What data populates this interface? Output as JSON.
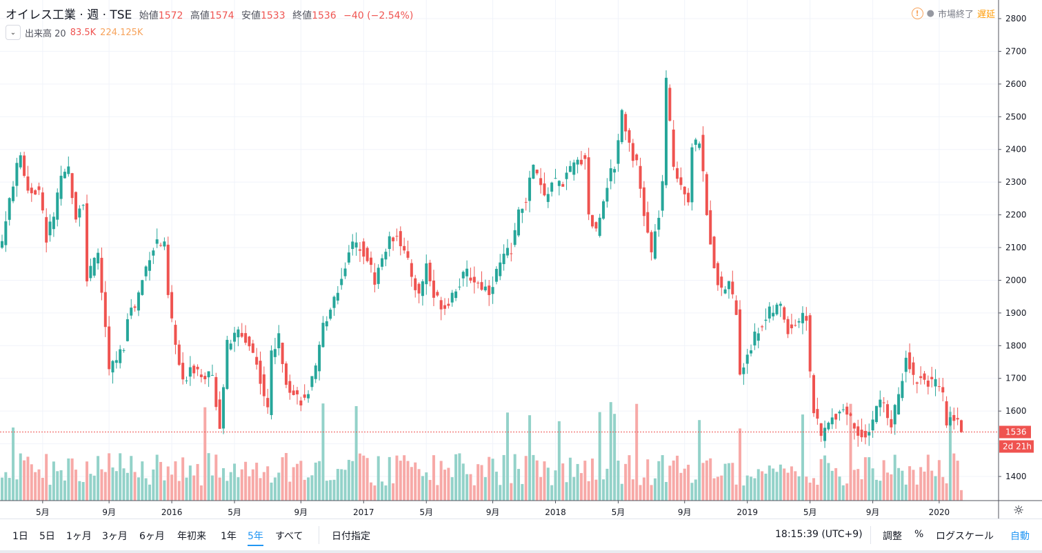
{
  "legend": {
    "symbol": "オイレス工業 · 週 · TSE",
    "open_label": "始値",
    "open": "1572",
    "high_label": "高値",
    "high": "1574",
    "low_label": "安値",
    "low": "1533",
    "close_label": "終値",
    "close": "1536",
    "change": "−40 (−2.54%)"
  },
  "volume_legend": {
    "label": "出来高 20",
    "value": "83.5K",
    "ma": "224.125K",
    "toggle_icon": "chevron-down-icon"
  },
  "status": {
    "text": "市場終了",
    "delay": "遅延"
  },
  "price_label": "1536",
  "countdown": "2d 21h",
  "toolbar": {
    "ranges": [
      "1日",
      "5日",
      "1ヶ月",
      "3ヶ月",
      "6ヶ月",
      "年初来",
      "1年",
      "5年",
      "すべて"
    ],
    "active": "5年",
    "date": "日付指定",
    "time": "18:15:39 (UTC+9)",
    "adjust": "調整",
    "percent": "%",
    "log": "ログスケール",
    "auto": "自動"
  },
  "colors": {
    "up": "#26a69a",
    "down": "#ef5350",
    "up_vol": "#93d2c9",
    "down_vol": "#f7a9a7"
  },
  "chart_data": {
    "type": "candlestick",
    "title": "オイレス工業 週足 TSE",
    "y_ticks": [
      2800,
      2700,
      2600,
      2500,
      2400,
      2300,
      2200,
      2100,
      2000,
      1900,
      1800,
      1700,
      1600,
      1500,
      1400
    ],
    "y_tick_labels": [
      "2800",
      "2700",
      "2600",
      "2500",
      "2400",
      "2300",
      "2200",
      "2100",
      "2000",
      "1900",
      "1800",
      "1700",
      "1600",
      "1400"
    ],
    "ylim": [
      1320,
      2830
    ],
    "x_ticks": [
      {
        "week": 11,
        "label": "5月"
      },
      {
        "week": 29,
        "label": "9月"
      },
      {
        "week": 46,
        "label": "2016"
      },
      {
        "week": 63,
        "label": "5月"
      },
      {
        "week": 81,
        "label": "9月"
      },
      {
        "week": 98,
        "label": "2017"
      },
      {
        "week": 115,
        "label": "5月"
      },
      {
        "week": 133,
        "label": "9月"
      },
      {
        "week": 150,
        "label": "2018"
      },
      {
        "week": 167,
        "label": "5月"
      },
      {
        "week": 185,
        "label": "9月"
      },
      {
        "week": 202,
        "label": "2019"
      },
      {
        "week": 219,
        "label": "5月"
      },
      {
        "week": 236,
        "label": "9月"
      },
      {
        "week": 254,
        "label": "2020"
      }
    ],
    "weeks": 261,
    "close_path": [
      [
        0,
        2120
      ],
      [
        3,
        2300
      ],
      [
        5,
        2380
      ],
      [
        7,
        2280
      ],
      [
        10,
        2270
      ],
      [
        12,
        2130
      ],
      [
        14,
        2200
      ],
      [
        16,
        2300
      ],
      [
        18,
        2340
      ],
      [
        20,
        2200
      ],
      [
        22,
        2250
      ],
      [
        23,
        2000
      ],
      [
        26,
        2080
      ],
      [
        28,
        1850
      ],
      [
        29,
        1720
      ],
      [
        31,
        1760
      ],
      [
        33,
        1800
      ],
      [
        34,
        1900
      ],
      [
        36,
        1920
      ],
      [
        38,
        2000
      ],
      [
        40,
        2080
      ],
      [
        42,
        2120
      ],
      [
        44,
        2100
      ],
      [
        45,
        1950
      ],
      [
        47,
        1800
      ],
      [
        49,
        1680
      ],
      [
        51,
        1740
      ],
      [
        54,
        1720
      ],
      [
        57,
        1700
      ],
      [
        59,
        1560
      ],
      [
        61,
        1800
      ],
      [
        64,
        1840
      ],
      [
        66,
        1820
      ],
      [
        68,
        1780
      ],
      [
        70,
        1700
      ],
      [
        72,
        1600
      ],
      [
        73,
        1780
      ],
      [
        75,
        1820
      ],
      [
        77,
        1700
      ],
      [
        79,
        1650
      ],
      [
        82,
        1630
      ],
      [
        85,
        1720
      ],
      [
        87,
        1860
      ],
      [
        90,
        1950
      ],
      [
        92,
        2000
      ],
      [
        94,
        2100
      ],
      [
        97,
        2110
      ],
      [
        99,
        2070
      ],
      [
        101,
        2000
      ],
      [
        104,
        2100
      ],
      [
        107,
        2150
      ],
      [
        110,
        2050
      ],
      [
        113,
        1950
      ],
      [
        115,
        2050
      ],
      [
        117,
        1950
      ],
      [
        120,
        1920
      ],
      [
        123,
        1980
      ],
      [
        126,
        2020
      ],
      [
        129,
        1990
      ],
      [
        132,
        1970
      ],
      [
        135,
        2050
      ],
      [
        138,
        2100
      ],
      [
        140,
        2200
      ],
      [
        142,
        2250
      ],
      [
        144,
        2350
      ],
      [
        147,
        2250
      ],
      [
        149,
        2300
      ],
      [
        152,
        2300
      ],
      [
        155,
        2350
      ],
      [
        158,
        2380
      ],
      [
        159,
        2200
      ],
      [
        161,
        2150
      ],
      [
        164,
        2300
      ],
      [
        166,
        2350
      ],
      [
        168,
        2520
      ],
      [
        170,
        2420
      ],
      [
        172,
        2350
      ],
      [
        174,
        2200
      ],
      [
        176,
        2080
      ],
      [
        178,
        2200
      ],
      [
        179,
        2300
      ],
      [
        180,
        2600
      ],
      [
        182,
        2350
      ],
      [
        184,
        2300
      ],
      [
        186,
        2250
      ],
      [
        187,
        2400
      ],
      [
        189,
        2430
      ],
      [
        191,
        2200
      ],
      [
        193,
        2050
      ],
      [
        195,
        1960
      ],
      [
        197,
        2000
      ],
      [
        199,
        1900
      ],
      [
        200,
        1700
      ],
      [
        202,
        1780
      ],
      [
        205,
        1850
      ],
      [
        208,
        1900
      ],
      [
        211,
        1920
      ],
      [
        213,
        1850
      ],
      [
        216,
        1880
      ],
      [
        218,
        1890
      ],
      [
        219,
        1720
      ],
      [
        220,
        1600
      ],
      [
        222,
        1520
      ],
      [
        224,
        1560
      ],
      [
        227,
        1610
      ],
      [
        229,
        1600
      ],
      [
        232,
        1530
      ],
      [
        235,
        1540
      ],
      [
        238,
        1640
      ],
      [
        241,
        1560
      ],
      [
        243,
        1640
      ],
      [
        245,
        1780
      ],
      [
        247,
        1700
      ],
      [
        250,
        1700
      ],
      [
        253,
        1680
      ],
      [
        255,
        1640
      ],
      [
        256,
        1560
      ],
      [
        258,
        1590
      ],
      [
        260,
        1536
      ]
    ],
    "last": {
      "open": 1572,
      "high": 1574,
      "low": 1533,
      "close": 1536,
      "volume": 83500
    },
    "volume_ma20": 224125
  }
}
